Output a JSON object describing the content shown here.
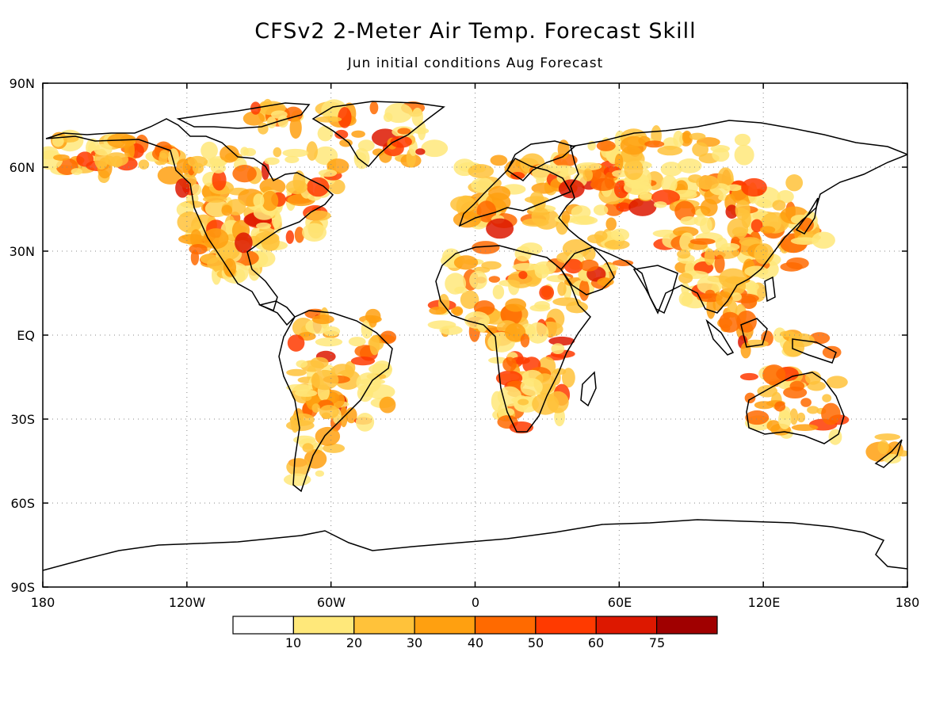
{
  "title": "CFSv2 2-Meter Air Temp. Forecast Skill",
  "subtitle": "Jun initial conditions  Aug Forecast",
  "map": {
    "lat_labels": [
      "90N",
      "60N",
      "30N",
      "EQ",
      "30S",
      "60S",
      "90S"
    ],
    "lon_labels": [
      "180",
      "120W",
      "60W",
      "0",
      "60E",
      "120E",
      "180"
    ],
    "grid": true,
    "projection": "cylindrical equidistant"
  },
  "colorbar": {
    "labels": [
      "10",
      "20",
      "30",
      "40",
      "50",
      "60",
      "75"
    ],
    "colors": [
      "#ffffff",
      "#ffe87a",
      "#ffc23a",
      "#ffa010",
      "#ff6a00",
      "#ff3a00",
      "#dd1800",
      "#a00000"
    ]
  },
  "shading": {
    "high_skill_colors": [
      "#ffe87a",
      "#ffc23a",
      "#ffa010",
      "#ff6a00",
      "#ff3a00",
      "#dd1800"
    ]
  }
}
